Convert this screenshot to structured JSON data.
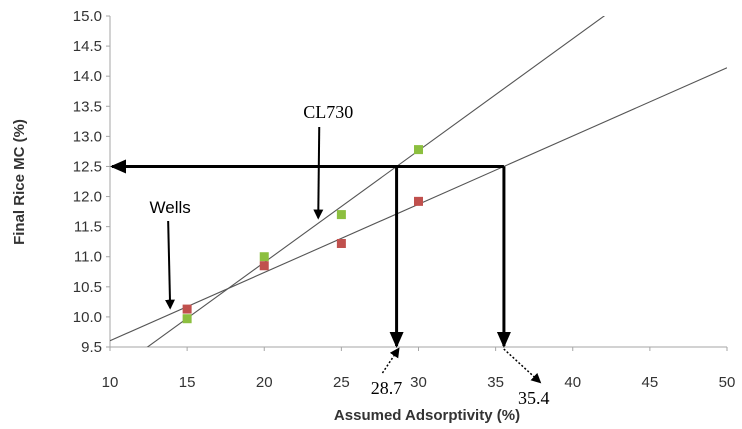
{
  "chart_data": {
    "type": "scatter",
    "xlabel": "Assumed Adsorptivity (%)",
    "ylabel": "Final Rice MC (%)",
    "xlim": [
      10,
      50
    ],
    "ylim": [
      9.5,
      15.0
    ],
    "xticks": [
      10,
      15,
      20,
      25,
      30,
      35,
      40,
      45,
      50
    ],
    "yticks": [
      9.5,
      10.0,
      10.5,
      11.0,
      11.5,
      12.0,
      12.5,
      13.0,
      13.5,
      14.0,
      14.5,
      15.0
    ],
    "xtick_labels": [
      "10",
      "15",
      "20",
      "25",
      "30",
      "35",
      "40",
      "45",
      "50"
    ],
    "ytick_labels": [
      "9.5",
      "10.0",
      "10.5",
      "11.0",
      "11.5",
      "12.0",
      "12.5",
      "13.0",
      "13.5",
      "14.0",
      "14.5",
      "15.0"
    ],
    "grid": false,
    "series": [
      {
        "color": "#8cbf3f",
        "x": [
          15,
          20,
          25,
          30
        ],
        "y": [
          9.97,
          11.0,
          11.7,
          12.78
        ],
        "trendline": {
          "slope": 0.1858,
          "intercept": 7.19
        }
      },
      {
        "color": "#c0504d",
        "x": [
          15,
          20,
          25,
          30
        ],
        "y": [
          10.13,
          10.85,
          11.22,
          11.92
        ],
        "trendline": {
          "slope": 0.1134,
          "intercept": 8.47
        }
      }
    ],
    "annotations": [
      {
        "text": "CL730",
        "arrow_to": {
          "x": 23.5,
          "y": 11.65
        }
      },
      {
        "text": "Wells",
        "arrow_to": {
          "x": 13.9,
          "y": 10.12
        }
      },
      {
        "text": "28.7",
        "x": 28.7
      },
      {
        "text": "35.4",
        "x": 35.4
      }
    ],
    "reference_y": 12.5
  },
  "colors": {
    "axis": "#a6a6a6",
    "trendline": "#555555",
    "arrow": "#000000"
  }
}
